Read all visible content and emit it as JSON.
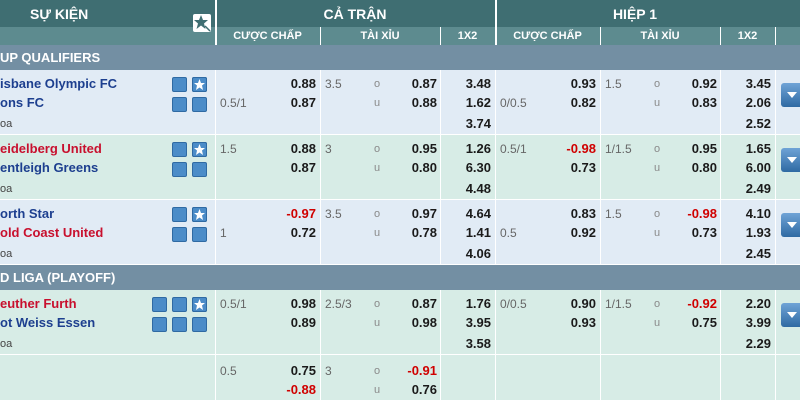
{
  "header": {
    "event": "SỰ KIỆN",
    "full_time": "CẢ TRẬN",
    "first_half": "HIỆP 1",
    "columns": [
      "CƯỢC CHẤP",
      "TÀI XỈU",
      "1X2",
      "CƯỢC CHẤP",
      "TÀI XỈU",
      "1X2"
    ]
  },
  "labels": {
    "over": "o",
    "under": "u"
  },
  "sections": [
    {
      "title": "UP QUALIFIERS",
      "matches": [
        {
          "home": "isbane Olympic FC",
          "away": "ons FC",
          "draw": "oa",
          "full": {
            "handicap": {
              "away_line": "0.5/1",
              "home": "0.88",
              "away": "0.87"
            },
            "over_under": {
              "line": "3.5",
              "over": "0.87",
              "under": "0.88"
            },
            "x12": {
              "home": "3.48",
              "away": "1.62",
              "draw": "3.74"
            }
          },
          "half": {
            "handicap": {
              "away_line": "0/0.5",
              "home": "0.93",
              "away": "0.82"
            },
            "over_under": {
              "line": "1.5",
              "over": "0.92",
              "under": "0.83"
            },
            "x12": {
              "home": "3.45",
              "away": "2.06",
              "draw": "2.52"
            }
          }
        },
        {
          "home": "eidelberg United",
          "away": "entleigh Greens",
          "draw": "oa",
          "highlight": "home",
          "full": {
            "handicap": {
              "home_line": "1.5",
              "home": "0.88",
              "away": "0.87"
            },
            "over_under": {
              "line": "3",
              "over": "0.95",
              "under": "0.80"
            },
            "x12": {
              "home": "1.26",
              "away": "6.30",
              "draw": "4.48"
            }
          },
          "half": {
            "handicap": {
              "home_line": "0.5/1",
              "home": "-0.98",
              "away": "0.73"
            },
            "over_under": {
              "line": "1/1.5",
              "over": "0.95",
              "under": "0.80"
            },
            "x12": {
              "home": "1.65",
              "away": "6.00",
              "draw": "2.49"
            }
          }
        },
        {
          "home": "orth Star",
          "away": "old Coast United",
          "draw": "oa",
          "highlight": "away",
          "full": {
            "handicap": {
              "away_line": "1",
              "home": "-0.97",
              "away": "0.72"
            },
            "over_under": {
              "line": "3.5",
              "over": "0.97",
              "under": "0.78"
            },
            "x12": {
              "home": "4.64",
              "away": "1.41",
              "draw": "4.06"
            }
          },
          "half": {
            "handicap": {
              "away_line": "0.5",
              "home": "0.83",
              "away": "0.92"
            },
            "over_under": {
              "line": "1.5",
              "over": "-0.98",
              "under": "0.73"
            },
            "x12": {
              "home": "4.10",
              "away": "1.93",
              "draw": "2.45"
            }
          }
        }
      ]
    },
    {
      "title": "D LIGA (PLAYOFF)",
      "matches": [
        {
          "home": "euther Furth",
          "away": "ot Weiss Essen",
          "draw": "oa",
          "highlight": "home",
          "full": {
            "handicap": {
              "home_line": "0.5/1",
              "home": "0.98",
              "away": "0.89"
            },
            "over_under": {
              "line": "2.5/3",
              "over": "0.87",
              "under": "0.98"
            },
            "x12": {
              "home": "1.76",
              "away": "3.95",
              "draw": "3.58"
            }
          },
          "half": {
            "handicap": {
              "home_line": "0/0.5",
              "home": "0.90",
              "away": "0.93"
            },
            "over_under": {
              "line": "1/1.5",
              "over": "-0.92",
              "under": "0.75"
            },
            "x12": {
              "home": "2.20",
              "away": "3.99",
              "draw": "2.29"
            }
          },
          "extra_lines": [
            {
              "handicap": {
                "home_line": "0.5",
                "home": "0.75",
                "away": "-0.88"
              },
              "over_under": {
                "line": "3",
                "over": "-0.91",
                "under": "0.76"
              }
            }
          ]
        }
      ]
    }
  ]
}
